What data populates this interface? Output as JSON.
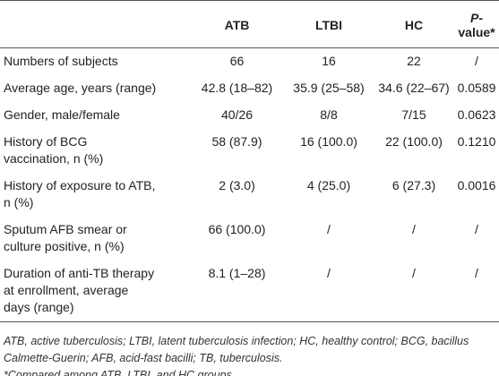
{
  "table": {
    "header": [
      "",
      "ATB",
      "LTBI",
      "HC",
      "P-value*"
    ],
    "rows": [
      {
        "label": [
          "Numbers of subjects"
        ],
        "cells": [
          "66",
          "16",
          "22",
          "/"
        ]
      },
      {
        "label": [
          "Average age, years (range)"
        ],
        "cells": [
          "42.8 (18–82)",
          "35.9 (25–58)",
          "34.6 (22–67)",
          "0.0589"
        ]
      },
      {
        "label": [
          "Gender, male/female"
        ],
        "cells": [
          "40/26",
          "8/8",
          "7/15",
          "0.0623"
        ]
      },
      {
        "label": [
          "History of BCG",
          "vaccination, n (%)"
        ],
        "cells": [
          "58 (87.9)",
          "16 (100.0)",
          "22 (100.0)",
          "0.1210"
        ]
      },
      {
        "label": [
          "History of exposure to ATB,",
          "n (%)"
        ],
        "cells": [
          "2 (3.0)",
          "4 (25.0)",
          "6 (27.3)",
          "0.0016"
        ]
      },
      {
        "label": [
          "Sputum AFB smear or",
          "culture positive, n (%)"
        ],
        "cells": [
          "66 (100.0)",
          "/",
          "/",
          "/"
        ]
      },
      {
        "label": [
          "Duration of anti-TB therapy",
          "at enrollment, average",
          "days (range)"
        ],
        "cells": [
          "8.1 (1–28)",
          "/",
          "/",
          "/"
        ]
      }
    ]
  },
  "footnotes": [
    "ATB, active tuberculosis; LTBI, latent tuberculosis infection; HC, healthy control; BCG, bacillus Calmette-Guerin; AFB, acid-fast bacilli; TB, tuberculosis.",
    "*Compared among ATB, LTBI, and HC groups."
  ]
}
